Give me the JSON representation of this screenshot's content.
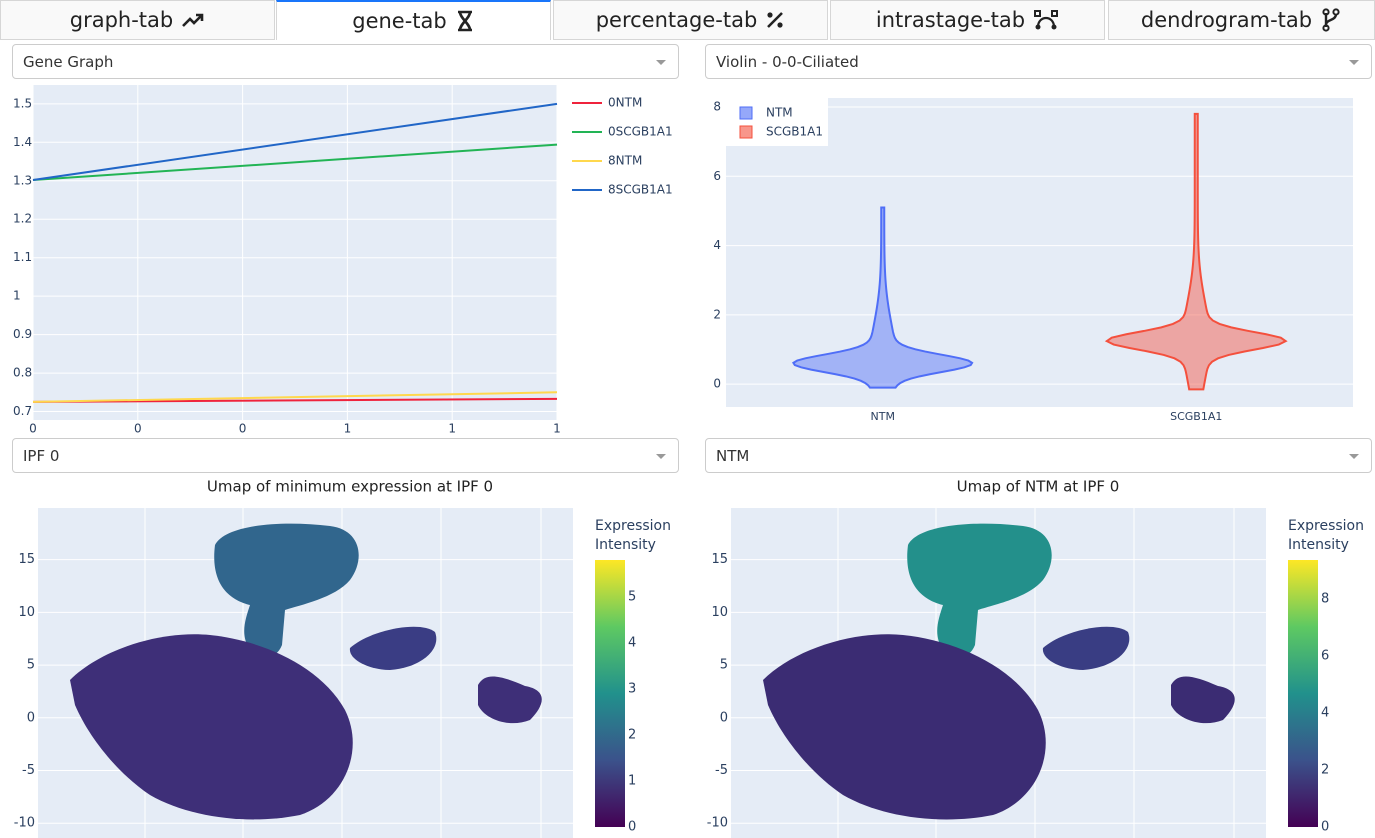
{
  "tabs": [
    "graph-tab",
    "gene-tab",
    "percentage-tab",
    "intrastage-tab",
    "dendrogram-tab"
  ],
  "panels": [
    {
      "dropdown": "Gene Graph",
      "chart": {
        "type": "line",
        "x": [
          0,
          1
        ],
        "series": [
          {
            "name": "0NTM",
            "color": "#ef233c",
            "values": [
              0.725,
              0.733
            ]
          },
          {
            "name": "0SCGB1A1",
            "color": "#22b455",
            "values": [
              1.302,
              1.394
            ]
          },
          {
            "name": "8NTM",
            "color": "#ffd84d",
            "values": [
              0.725,
              0.75
            ]
          },
          {
            "name": "8SCGB1A1",
            "color": "#2166c7",
            "values": [
              1.302,
              1.5
            ]
          }
        ],
        "xlim": [
          0,
          1
        ],
        "xticks": [
          0,
          {
            "value": 0.2,
            "label": "0"
          },
          {
            "value": 0.4,
            "label": "0"
          },
          {
            "value": 0.6,
            "label": "1"
          },
          {
            "value": 0.8,
            "label": "1"
          },
          1
        ],
        "ylim": [
          0.678,
          1.549
        ],
        "yticks": [
          0.7,
          0.8,
          0.9,
          1,
          1.1,
          1.2,
          1.3,
          1.4,
          1.5
        ],
        "grid": true
      }
    },
    {
      "dropdown": "Violin - 0-0-Ciliated",
      "chart": {
        "type": "violin",
        "categories": [
          "NTM",
          "SCGB1A1"
        ],
        "series": [
          {
            "name": "NTM",
            "color": "#4f6ef7",
            "min": -0.1,
            "median": 0.6,
            "max": 5.1
          },
          {
            "name": "SCGB1A1",
            "color": "#f4503d",
            "min": -0.15,
            "median": 1.25,
            "max": 7.8
          }
        ],
        "ylim": [
          -0.66,
          8.26
        ],
        "yticks": [
          0,
          2,
          4,
          6,
          8
        ],
        "grid": true
      }
    },
    {
      "dropdown": "IPF 0",
      "chart": {
        "type": "scatter",
        "title": "Umap of minimum expression at IPF 0",
        "ylim": [
          -11.4,
          19.9
        ],
        "yticks": [
          -10,
          -5,
          0,
          5,
          10,
          15
        ],
        "colorbar": {
          "title": "Expression Intensity",
          "clim": [
            0,
            5.8
          ],
          "ticks": [
            0,
            1,
            2,
            3,
            4,
            5
          ]
        }
      }
    },
    {
      "dropdown": "NTM",
      "chart": {
        "type": "scatter",
        "title": "Umap of NTM at IPF 0",
        "ylim": [
          -11.4,
          19.9
        ],
        "yticks": [
          -10,
          -5,
          0,
          5,
          10,
          15
        ],
        "colorbar": {
          "title": "Expression Intensity",
          "clim": [
            0,
            9.37
          ],
          "ticks": [
            0,
            2,
            4,
            6,
            8
          ]
        }
      }
    }
  ]
}
